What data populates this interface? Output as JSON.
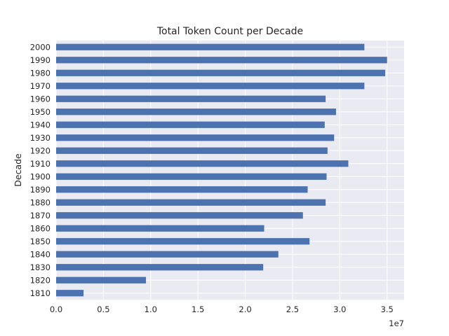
{
  "chart_data": {
    "type": "bar",
    "orientation": "horizontal",
    "title": "Total Token Count per Decade",
    "xlabel": "",
    "ylabel": "Decade",
    "x_offset_label": "1e7",
    "xlim": [
      0,
      3.68
    ],
    "x_ticks": [
      0,
      0.5,
      1,
      1.5,
      2,
      2.5,
      3,
      3.5
    ],
    "x_tick_labels": [
      "0.0",
      "0.5",
      "1.0",
      "1.5",
      "2.0",
      "2.5",
      "3.0",
      "3.5"
    ],
    "x_scale": 10000000,
    "grid": true,
    "categories": [
      "1810",
      "1820",
      "1830",
      "1840",
      "1850",
      "1860",
      "1870",
      "1880",
      "1890",
      "1900",
      "1910",
      "1920",
      "1930",
      "1940",
      "1950",
      "1960",
      "1970",
      "1980",
      "1990",
      "2000"
    ],
    "values": [
      2.9,
      9.5,
      21.9,
      23.5,
      26.8,
      22.0,
      26.1,
      28.5,
      26.6,
      28.6,
      30.9,
      28.7,
      29.4,
      28.4,
      29.6,
      28.5,
      32.6,
      34.8,
      35.0,
      32.6
    ],
    "values_unit": "millions",
    "bar_color": "#4c72b0",
    "background_color": "#eaeaf2"
  }
}
